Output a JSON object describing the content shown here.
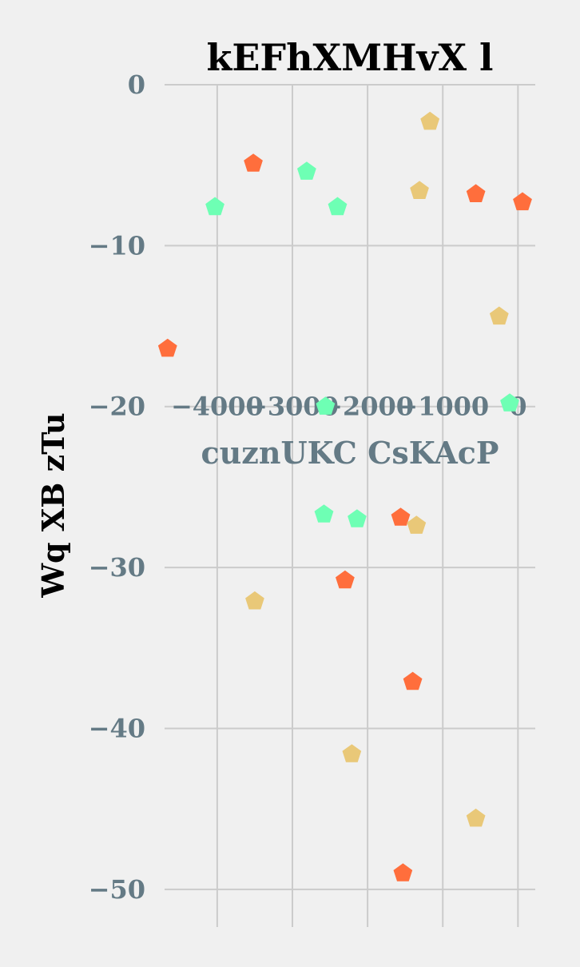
{
  "chart_data": {
    "type": "scatter",
    "title": "kEFhXMHvX l",
    "xlabel": "cuznUKC CsKAcP",
    "ylabel": "Wq XB zTu",
    "xlim": [
      -4700,
      230
    ],
    "ylim": [
      -51,
      0
    ],
    "xticks": [
      -4000,
      -3000,
      -2000,
      -1000,
      0
    ],
    "xtick_labels": [
      "−4000",
      "−3000",
      "−2000",
      "−1000",
      "0"
    ],
    "yticks": [
      0,
      -10,
      -20,
      -30,
      -40,
      -50
    ],
    "ytick_labels": [
      "0",
      "−10",
      "−20",
      "−30",
      "−40",
      "−50"
    ],
    "grid": true,
    "marker": "pentagon",
    "series": [
      {
        "color": "#ff6e3c",
        "points": [
          {
            "x": -4660,
            "y": -16.4
          },
          {
            "x": -3520,
            "y": -4.9
          },
          {
            "x": -2300,
            "y": -30.8
          },
          {
            "x": -1560,
            "y": -26.9
          },
          {
            "x": -1530,
            "y": -49.0
          },
          {
            "x": -1400,
            "y": -37.1
          },
          {
            "x": -560,
            "y": -6.8
          },
          {
            "x": 60,
            "y": -7.3
          }
        ]
      },
      {
        "color": "#6effb4",
        "points": [
          {
            "x": -4030,
            "y": -7.6
          },
          {
            "x": -2810,
            "y": -5.4
          },
          {
            "x": -2580,
            "y": -26.7
          },
          {
            "x": -2560,
            "y": -20.0
          },
          {
            "x": -2400,
            "y": -7.6
          },
          {
            "x": -2140,
            "y": -27.0
          },
          {
            "x": -110,
            "y": -19.8
          }
        ]
      },
      {
        "color": "#e9c878",
        "points": [
          {
            "x": -3500,
            "y": -32.1
          },
          {
            "x": -2210,
            "y": -41.6
          },
          {
            "x": -1350,
            "y": -27.4
          },
          {
            "x": -1310,
            "y": -6.6
          },
          {
            "x": -1170,
            "y": -2.3
          },
          {
            "x": -560,
            "y": -45.6
          },
          {
            "x": -250,
            "y": -14.4
          }
        ]
      }
    ]
  }
}
